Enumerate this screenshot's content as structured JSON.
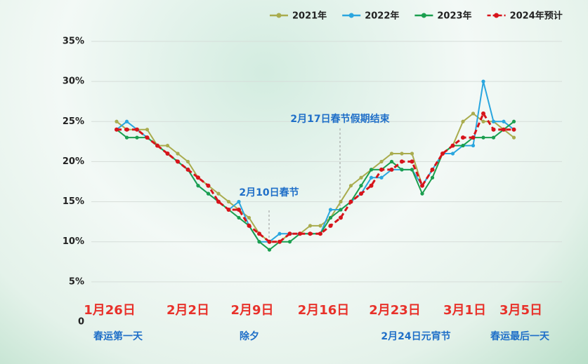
{
  "chart_data": {
    "type": "line",
    "categories": [
      "1月26日",
      null,
      null,
      null,
      null,
      null,
      null,
      "2月2日",
      null,
      null,
      null,
      null,
      null,
      null,
      "2月9日",
      null,
      null,
      null,
      null,
      null,
      null,
      "2月16日",
      null,
      null,
      null,
      null,
      null,
      null,
      "2月23日",
      null,
      null,
      null,
      null,
      null,
      null,
      "3月1日",
      null,
      null,
      null,
      "3月5日"
    ],
    "series": [
      {
        "name": "2021年",
        "color": "#a9ac4e",
        "values": [
          25,
          24,
          24,
          24,
          22,
          22,
          21,
          20,
          18,
          17,
          16,
          15,
          14,
          13,
          11,
          10,
          10,
          11,
          11,
          12,
          12,
          13,
          15,
          17,
          18,
          19,
          20,
          21,
          21,
          21,
          17,
          19,
          21,
          22,
          25,
          26,
          25,
          25,
          24,
          23
        ]
      },
      {
        "name": "2022年",
        "color": "#2aa6df",
        "values": [
          24,
          25,
          24,
          23,
          22,
          21,
          20,
          19,
          17,
          16,
          15,
          14,
          15,
          12,
          10,
          10,
          11,
          11,
          11,
          11,
          11,
          14,
          14,
          15,
          16,
          18,
          18,
          19,
          19,
          19,
          17,
          19,
          21,
          21,
          22,
          22,
          30,
          25,
          25,
          24
        ]
      },
      {
        "name": "2023年",
        "color": "#1b9f4f",
        "values": [
          24,
          23,
          23,
          23,
          22,
          21,
          20,
          19,
          17,
          16,
          15,
          14,
          13,
          12,
          10,
          9,
          10,
          10,
          11,
          11,
          11,
          13,
          14,
          15,
          17,
          19,
          19,
          20,
          19,
          19,
          16,
          18,
          21,
          22,
          22,
          23,
          23,
          23,
          24,
          25
        ]
      },
      {
        "name": "2024年预计",
        "color": "#d7141b",
        "dashed": true,
        "values": [
          24,
          24,
          24,
          23,
          22,
          21,
          20,
          19,
          18,
          17,
          15,
          14,
          14,
          12,
          11,
          10,
          10,
          11,
          11,
          11,
          11,
          12,
          13,
          15,
          16,
          17,
          19,
          19,
          20,
          20,
          17,
          19,
          21,
          22,
          23,
          23,
          26,
          24,
          24,
          24
        ]
      }
    ],
    "ylim": [
      0,
      35
    ],
    "yticks": [
      0,
      {
        "value": 5,
        "label": "5%"
      },
      {
        "value": 10,
        "label": "10%"
      },
      {
        "value": 15,
        "label": "15%"
      },
      {
        "value": 20,
        "label": "20%"
      },
      {
        "value": 25,
        "label": "25%"
      },
      {
        "value": 30,
        "label": "30%"
      },
      {
        "value": 35,
        "label": "35%"
      }
    ],
    "grid": true,
    "legend": "top",
    "annotations": [
      "2月10日春节",
      "2月17日春节假期结束",
      "春运第一天",
      "除夕",
      "2月24日元宵节",
      "春运最后一天"
    ]
  }
}
